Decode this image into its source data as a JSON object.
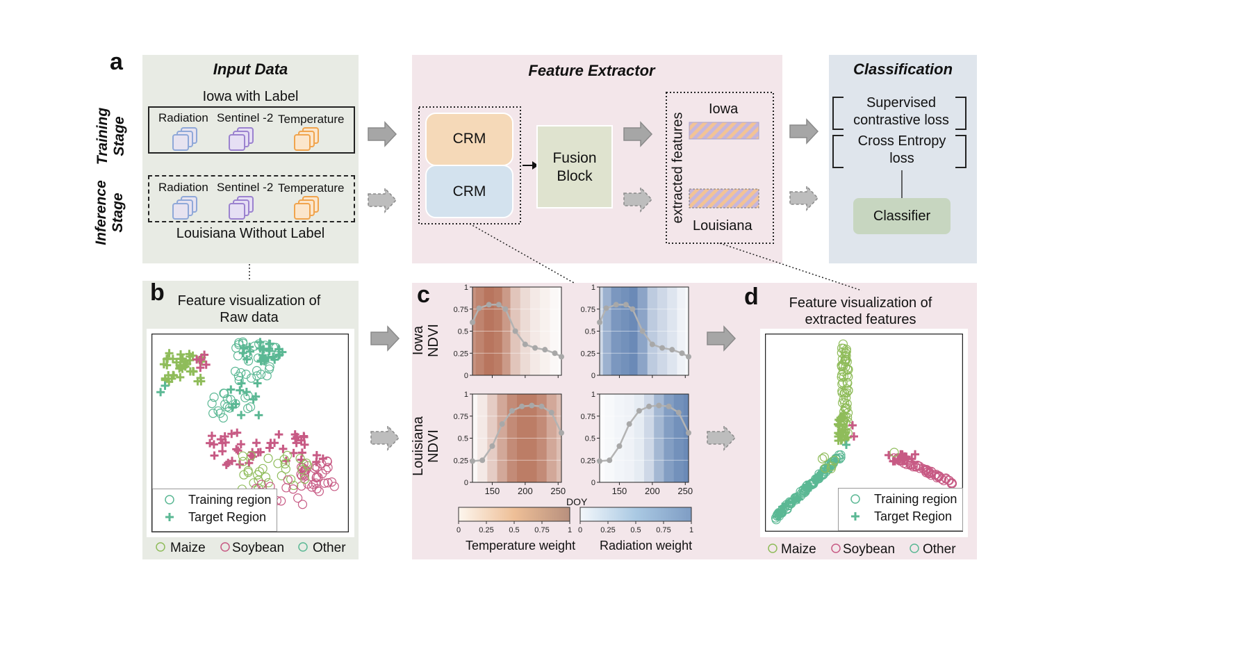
{
  "panel_letters": {
    "a": "a",
    "b": "b",
    "c": "c",
    "d": "d"
  },
  "colors": {
    "input_bg": "#e8ebe4",
    "feature_bg": "#f3e6ea",
    "class_bg": "#dfe5ec",
    "crm_top": "#f5d9b8",
    "crm_bottom": "#d3e2ee",
    "fusion": "#dfe3cf",
    "classifier": "#c7d6c0",
    "maize": "#8fbc5a",
    "soybean": "#c75a84",
    "other": "#5bb894",
    "radiation_icon": "#8fa8d8",
    "sentinel_icon": "#9b82cf",
    "temperature_icon": "#f0a44d",
    "ndvi_line": "#b3b3b3"
  },
  "panel_a": {
    "stages": {
      "training": "Training Stage",
      "inference": "Inference Stage"
    },
    "input_data": {
      "title": "Input Data",
      "training_caption": "Iowa with Label",
      "inference_caption": "Louisiana Without Label",
      "sources": [
        "Radiation",
        "Sentinel -2",
        "Temperature"
      ]
    },
    "feature_extractor": {
      "title": "Feature Extractor",
      "crm_top": "CRM",
      "crm_bottom": "CRM",
      "fusion": "Fusion Block",
      "extracted_label": "extracted features",
      "iowa": "Iowa",
      "louisiana": "Louisiana"
    },
    "classification": {
      "title": "Classification",
      "loss1": "Supervised contrastive loss",
      "loss2": "Cross Entropy loss",
      "classifier": "Classifier"
    }
  },
  "panel_b": {
    "title_line1": "Feature  visualization  of",
    "title_line2": "Raw data",
    "legend": {
      "training": "Training region",
      "target": "Target Region"
    },
    "classes": [
      "Maize",
      "Soybean",
      "Other"
    ]
  },
  "panel_c": {
    "row_labels": [
      "Iowa NDVI",
      "Louisiana NDVI"
    ],
    "doy_label": "DOY",
    "x_ticks": [
      "150",
      "200",
      "250"
    ],
    "y_ticks": [
      "0",
      "0.25",
      "0.5",
      "0.75",
      "1"
    ],
    "colorbar_ticks": [
      "0",
      "0.25",
      "0.5",
      "0.75",
      "1"
    ],
    "colorbar_labels": {
      "temperature": "Temperature weight",
      "radiation": "Radiation weight"
    }
  },
  "panel_d": {
    "title_line1": "Feature  visualization  of",
    "title_line2": "extracted features",
    "legend": {
      "training": "Training region",
      "target": "Target Region"
    },
    "classes": [
      "Maize",
      "Soybean",
      "Other"
    ]
  },
  "chart_data": [
    {
      "type": "line",
      "xlabel": "DOY",
      "ylabel": "Iowa NDVI",
      "xlim": [
        120,
        255
      ],
      "ylim": [
        0,
        1
      ],
      "series": [
        {
          "x": [
            120,
            130,
            145,
            160,
            170,
            185,
            200,
            215,
            230,
            245,
            255
          ],
          "values": [
            0.6,
            0.76,
            0.8,
            0.8,
            0.75,
            0.5,
            0.35,
            0.31,
            0.29,
            0.25,
            0.21
          ]
        }
      ],
      "overlay": "Temperature weight",
      "overlay_weights": [
        0.75,
        0.85,
        0.95,
        0.9,
        0.7,
        0.4,
        0.25,
        0.15,
        0.1,
        0.05,
        0.03
      ]
    },
    {
      "type": "line",
      "xlabel": "DOY",
      "ylabel": "Iowa NDVI",
      "xlim": [
        120,
        255
      ],
      "ylim": [
        0,
        1
      ],
      "series": [
        {
          "x": [
            120,
            130,
            145,
            160,
            170,
            185,
            200,
            215,
            230,
            245,
            255
          ],
          "values": [
            0.6,
            0.76,
            0.8,
            0.8,
            0.75,
            0.5,
            0.35,
            0.31,
            0.29,
            0.25,
            0.21
          ]
        }
      ],
      "overlay": "Radiation weight",
      "overlay_weights": [
        0.3,
        0.6,
        0.8,
        0.85,
        0.9,
        0.7,
        0.4,
        0.3,
        0.2,
        0.1,
        0.05
      ]
    },
    {
      "type": "line",
      "xlabel": "DOY",
      "ylabel": "Louisiana NDVI",
      "xlim": [
        120,
        255
      ],
      "ylim": [
        0,
        1
      ],
      "series": [
        {
          "x": [
            120,
            135,
            150,
            165,
            180,
            195,
            210,
            225,
            240,
            255
          ],
          "values": [
            0.24,
            0.25,
            0.41,
            0.66,
            0.81,
            0.86,
            0.87,
            0.86,
            0.79,
            0.56
          ]
        }
      ],
      "overlay": "Temperature weight",
      "overlay_weights": [
        0.05,
        0.15,
        0.35,
        0.6,
        0.8,
        0.9,
        0.9,
        0.8,
        0.6,
        0.45
      ]
    },
    {
      "type": "line",
      "xlabel": "DOY",
      "ylabel": "Louisiana NDVI",
      "xlim": [
        120,
        255
      ],
      "ylim": [
        0,
        1
      ],
      "series": [
        {
          "x": [
            120,
            135,
            150,
            165,
            180,
            195,
            210,
            225,
            240,
            255
          ],
          "values": [
            0.24,
            0.25,
            0.41,
            0.66,
            0.81,
            0.86,
            0.87,
            0.86,
            0.79,
            0.56
          ]
        }
      ],
      "overlay": "Radiation weight",
      "overlay_weights": [
        0.02,
        0.05,
        0.08,
        0.1,
        0.15,
        0.3,
        0.55,
        0.75,
        0.85,
        0.9
      ]
    }
  ]
}
